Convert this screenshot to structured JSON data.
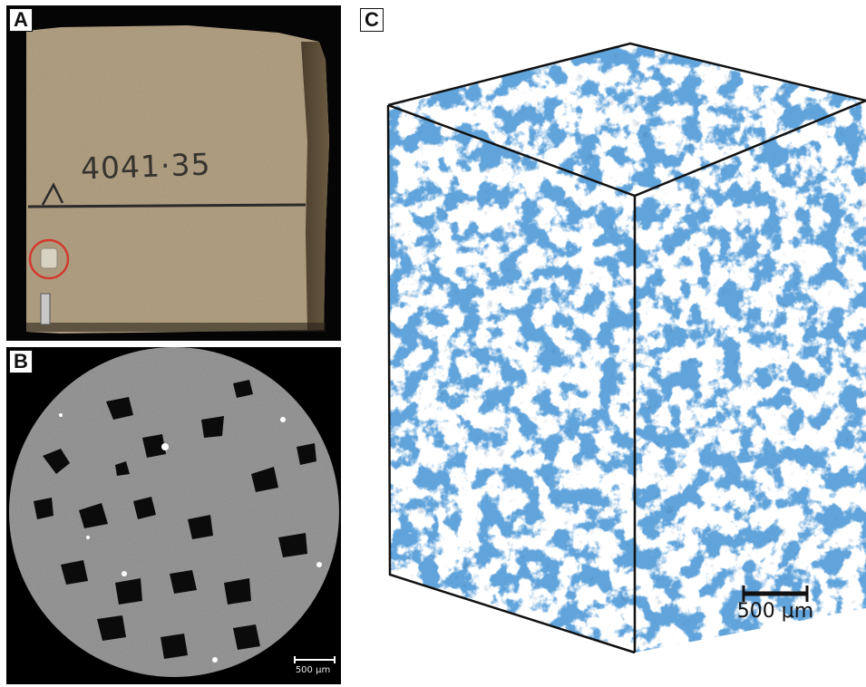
{
  "panels": {
    "a": {
      "letter": "A",
      "sample_marking": "4041·35",
      "description_icon": "sandstone-core-photo"
    },
    "b": {
      "letter": "B",
      "scale_bar_label": "500 μm",
      "description_icon": "ct-slice-grayscale"
    },
    "c": {
      "letter": "C",
      "scale_bar_label": "500 μm",
      "description_icon": "pore-network-3d-render"
    }
  },
  "colors": {
    "rock_tan": "#a99472",
    "pore_blue": "#1f5fb4",
    "grain_gray": "#8a8a8a",
    "circle_red": "#d23a2e"
  }
}
